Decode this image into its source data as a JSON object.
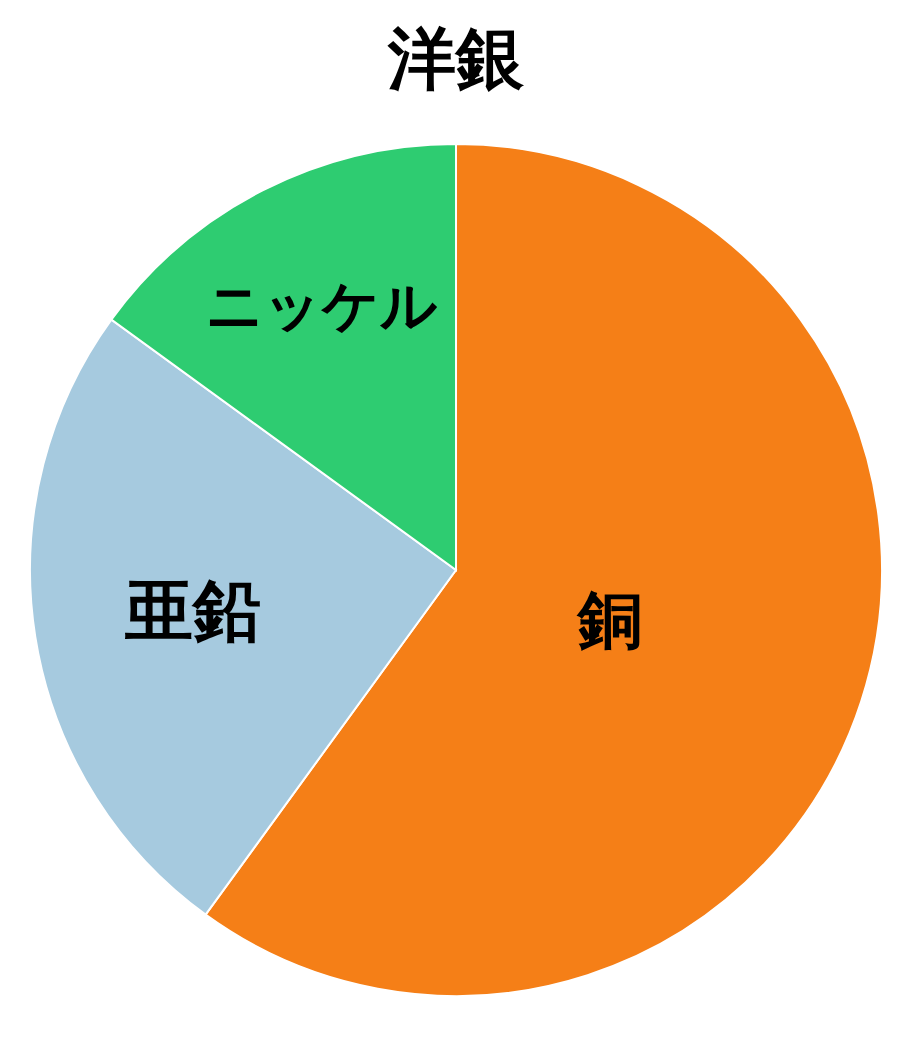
{
  "chart_data": {
    "type": "pie",
    "title": "洋銀",
    "categories": [
      "銅",
      "亜鉛",
      "ニッケル"
    ],
    "values": [
      60,
      25,
      15
    ],
    "colors": [
      "#f57f17",
      "#a6cadf",
      "#2ecc71"
    ]
  }
}
